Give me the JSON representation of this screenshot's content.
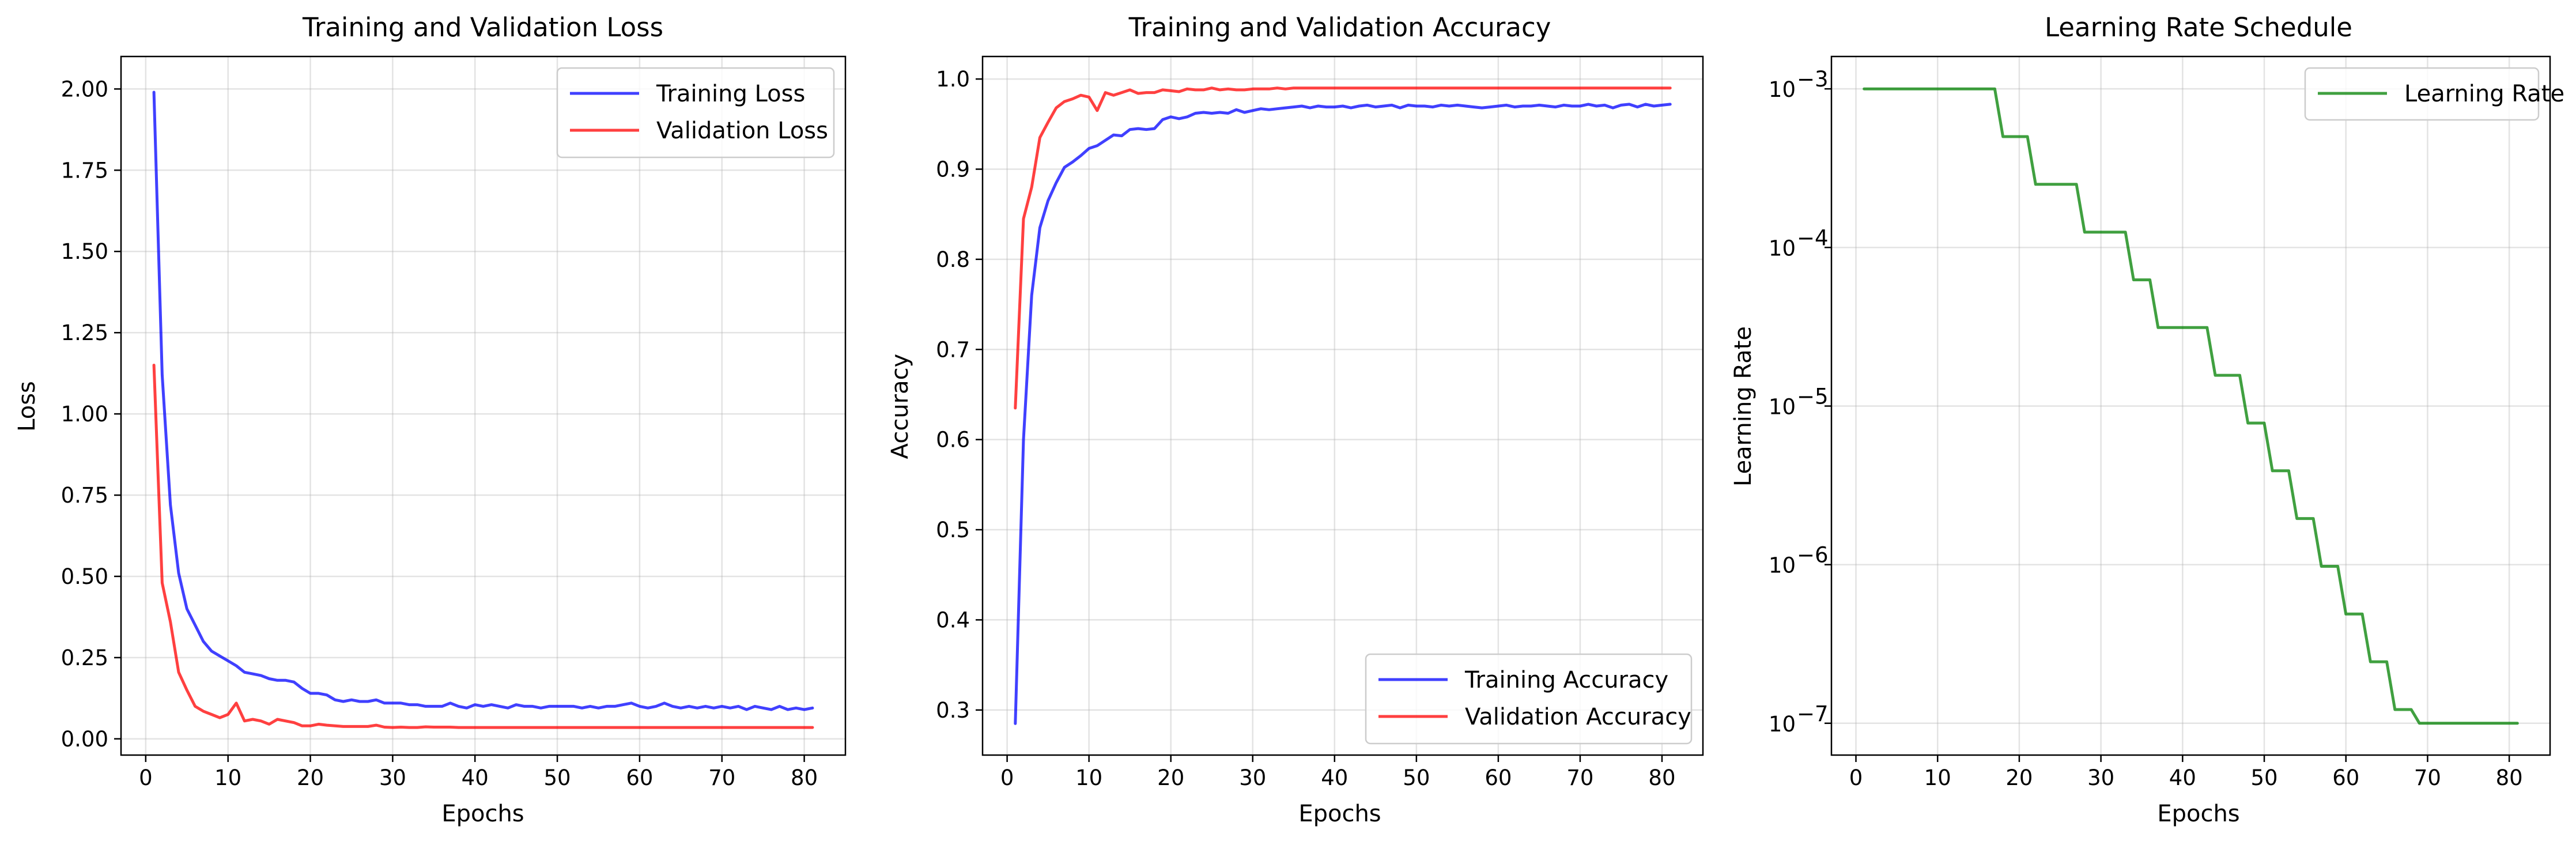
{
  "chart_data": [
    {
      "type": "line",
      "title": "Training and Validation Loss",
      "xlabel": "Epochs",
      "ylabel": "Loss",
      "xlim": [
        -3,
        85
      ],
      "ylim": [
        -0.05,
        2.1
      ],
      "xticks": [
        0,
        10,
        20,
        30,
        40,
        50,
        60,
        70,
        80
      ],
      "yticks": [
        0.0,
        0.25,
        0.5,
        0.75,
        1.0,
        1.25,
        1.5,
        1.75,
        2.0
      ],
      "ytick_labels": [
        "0.00",
        "0.25",
        "0.50",
        "0.75",
        "1.00",
        "1.25",
        "1.50",
        "1.75",
        "2.00"
      ],
      "grid": true,
      "legend_position": "upper right",
      "series": [
        {
          "name": "Training Loss",
          "color": "#0000ff",
          "x": [
            1,
            2,
            3,
            4,
            5,
            6,
            7,
            8,
            9,
            10,
            11,
            12,
            13,
            14,
            15,
            16,
            17,
            18,
            19,
            20,
            21,
            22,
            23,
            24,
            25,
            26,
            27,
            28,
            29,
            30,
            31,
            32,
            33,
            34,
            35,
            36,
            37,
            38,
            39,
            40,
            41,
            42,
            43,
            44,
            45,
            46,
            47,
            48,
            49,
            50,
            51,
            52,
            53,
            54,
            55,
            56,
            57,
            58,
            59,
            60,
            61,
            62,
            63,
            64,
            65,
            66,
            67,
            68,
            69,
            70,
            71,
            72,
            73,
            74,
            75,
            76,
            77,
            78,
            79,
            80,
            81
          ],
          "values": [
            1.99,
            1.12,
            0.72,
            0.51,
            0.4,
            0.35,
            0.3,
            0.27,
            0.255,
            0.24,
            0.225,
            0.205,
            0.2,
            0.195,
            0.185,
            0.18,
            0.18,
            0.175,
            0.155,
            0.14,
            0.14,
            0.135,
            0.12,
            0.115,
            0.12,
            0.115,
            0.115,
            0.12,
            0.11,
            0.11,
            0.11,
            0.105,
            0.105,
            0.1,
            0.1,
            0.1,
            0.11,
            0.1,
            0.095,
            0.105,
            0.1,
            0.105,
            0.1,
            0.095,
            0.105,
            0.1,
            0.1,
            0.095,
            0.1,
            0.1,
            0.1,
            0.1,
            0.095,
            0.1,
            0.095,
            0.1,
            0.1,
            0.105,
            0.11,
            0.1,
            0.095,
            0.1,
            0.11,
            0.1,
            0.095,
            0.1,
            0.095,
            0.1,
            0.095,
            0.1,
            0.095,
            0.1,
            0.09,
            0.1,
            0.095,
            0.09,
            0.1,
            0.09,
            0.095,
            0.09,
            0.095
          ]
        },
        {
          "name": "Validation Loss",
          "color": "#ff0000",
          "x": [
            1,
            2,
            3,
            4,
            5,
            6,
            7,
            8,
            9,
            10,
            11,
            12,
            13,
            14,
            15,
            16,
            17,
            18,
            19,
            20,
            21,
            22,
            23,
            24,
            25,
            26,
            27,
            28,
            29,
            30,
            31,
            32,
            33,
            34,
            35,
            36,
            37,
            38,
            39,
            40,
            41,
            42,
            43,
            44,
            45,
            46,
            47,
            48,
            49,
            50,
            51,
            52,
            53,
            54,
            55,
            56,
            57,
            58,
            59,
            60,
            61,
            62,
            63,
            64,
            65,
            66,
            67,
            68,
            69,
            70,
            71,
            72,
            73,
            74,
            75,
            76,
            77,
            78,
            79,
            80,
            81
          ],
          "values": [
            1.15,
            0.48,
            0.36,
            0.205,
            0.15,
            0.1,
            0.085,
            0.075,
            0.065,
            0.075,
            0.11,
            0.055,
            0.06,
            0.055,
            0.045,
            0.06,
            0.055,
            0.05,
            0.04,
            0.04,
            0.045,
            0.042,
            0.04,
            0.038,
            0.038,
            0.038,
            0.038,
            0.042,
            0.036,
            0.035,
            0.036,
            0.035,
            0.035,
            0.037,
            0.036,
            0.036,
            0.036,
            0.035,
            0.035,
            0.035,
            0.035,
            0.035,
            0.035,
            0.035,
            0.035,
            0.035,
            0.035,
            0.035,
            0.035,
            0.035,
            0.035,
            0.035,
            0.035,
            0.035,
            0.035,
            0.035,
            0.035,
            0.035,
            0.035,
            0.035,
            0.035,
            0.035,
            0.035,
            0.035,
            0.035,
            0.035,
            0.035,
            0.035,
            0.035,
            0.035,
            0.035,
            0.035,
            0.035,
            0.035,
            0.035,
            0.035,
            0.035,
            0.035,
            0.035,
            0.035,
            0.035
          ]
        }
      ]
    },
    {
      "type": "line",
      "title": "Training and Validation Accuracy",
      "xlabel": "Epochs",
      "ylabel": "Accuracy",
      "xlim": [
        -3,
        85
      ],
      "ylim": [
        0.25,
        1.025
      ],
      "xticks": [
        0,
        10,
        20,
        30,
        40,
        50,
        60,
        70,
        80
      ],
      "yticks": [
        0.3,
        0.4,
        0.5,
        0.6,
        0.7,
        0.8,
        0.9,
        1.0
      ],
      "ytick_labels": [
        "0.3",
        "0.4",
        "0.5",
        "0.6",
        "0.7",
        "0.8",
        "0.9",
        "1.0"
      ],
      "grid": true,
      "legend_position": "lower right",
      "series": [
        {
          "name": "Training Accuracy",
          "color": "#0000ff",
          "x": [
            1,
            2,
            3,
            4,
            5,
            6,
            7,
            8,
            9,
            10,
            11,
            12,
            13,
            14,
            15,
            16,
            17,
            18,
            19,
            20,
            21,
            22,
            23,
            24,
            25,
            26,
            27,
            28,
            29,
            30,
            31,
            32,
            33,
            34,
            35,
            36,
            37,
            38,
            39,
            40,
            41,
            42,
            43,
            44,
            45,
            46,
            47,
            48,
            49,
            50,
            51,
            52,
            53,
            54,
            55,
            56,
            57,
            58,
            59,
            60,
            61,
            62,
            63,
            64,
            65,
            66,
            67,
            68,
            69,
            70,
            71,
            72,
            73,
            74,
            75,
            76,
            77,
            78,
            79,
            80,
            81
          ],
          "values": [
            0.285,
            0.6,
            0.76,
            0.835,
            0.865,
            0.885,
            0.902,
            0.908,
            0.915,
            0.923,
            0.926,
            0.932,
            0.938,
            0.937,
            0.944,
            0.945,
            0.944,
            0.945,
            0.955,
            0.958,
            0.956,
            0.958,
            0.962,
            0.963,
            0.962,
            0.963,
            0.962,
            0.966,
            0.963,
            0.965,
            0.967,
            0.966,
            0.967,
            0.968,
            0.969,
            0.97,
            0.968,
            0.97,
            0.969,
            0.969,
            0.97,
            0.968,
            0.97,
            0.971,
            0.969,
            0.97,
            0.971,
            0.968,
            0.971,
            0.97,
            0.97,
            0.969,
            0.971,
            0.97,
            0.971,
            0.97,
            0.969,
            0.968,
            0.969,
            0.97,
            0.971,
            0.969,
            0.97,
            0.97,
            0.971,
            0.97,
            0.969,
            0.971,
            0.97,
            0.97,
            0.972,
            0.97,
            0.971,
            0.968,
            0.971,
            0.972,
            0.969,
            0.972,
            0.97,
            0.971,
            0.972
          ]
        },
        {
          "name": "Validation Accuracy",
          "color": "#ff0000",
          "x": [
            1,
            2,
            3,
            4,
            5,
            6,
            7,
            8,
            9,
            10,
            11,
            12,
            13,
            14,
            15,
            16,
            17,
            18,
            19,
            20,
            21,
            22,
            23,
            24,
            25,
            26,
            27,
            28,
            29,
            30,
            31,
            32,
            33,
            34,
            35,
            36,
            37,
            38,
            39,
            40,
            41,
            42,
            43,
            44,
            45,
            46,
            47,
            48,
            49,
            50,
            51,
            52,
            53,
            54,
            55,
            56,
            57,
            58,
            59,
            60,
            61,
            62,
            63,
            64,
            65,
            66,
            67,
            68,
            69,
            70,
            71,
            72,
            73,
            74,
            75,
            76,
            77,
            78,
            79,
            80,
            81
          ],
          "values": [
            0.635,
            0.845,
            0.88,
            0.935,
            0.952,
            0.968,
            0.975,
            0.978,
            0.982,
            0.98,
            0.965,
            0.985,
            0.982,
            0.985,
            0.988,
            0.984,
            0.985,
            0.985,
            0.988,
            0.987,
            0.986,
            0.989,
            0.988,
            0.988,
            0.99,
            0.988,
            0.989,
            0.988,
            0.988,
            0.989,
            0.989,
            0.989,
            0.99,
            0.989,
            0.99,
            0.99,
            0.99,
            0.99,
            0.99,
            0.99,
            0.99,
            0.99,
            0.99,
            0.99,
            0.99,
            0.99,
            0.99,
            0.99,
            0.99,
            0.99,
            0.99,
            0.99,
            0.99,
            0.99,
            0.99,
            0.99,
            0.99,
            0.99,
            0.99,
            0.99,
            0.99,
            0.99,
            0.99,
            0.99,
            0.99,
            0.99,
            0.99,
            0.99,
            0.99,
            0.99,
            0.99,
            0.99,
            0.99,
            0.99,
            0.99,
            0.99,
            0.99,
            0.99,
            0.99,
            0.99,
            0.99
          ]
        }
      ]
    },
    {
      "type": "line",
      "title": "Learning Rate Schedule",
      "xlabel": "Epochs",
      "ylabel": "Learning Rate",
      "xlim": [
        -3,
        85
      ],
      "ylim": [
        6.3e-08,
        0.0016
      ],
      "yscale": "log",
      "xticks": [
        0,
        10,
        20,
        30,
        40,
        50,
        60,
        70,
        80
      ],
      "yticks": [
        1e-07,
        1e-06,
        1e-05,
        0.0001,
        0.001
      ],
      "ytick_labels": [
        "10",
        "10",
        "10",
        "10",
        "10"
      ],
      "ytick_exponents": [
        "−7",
        "−6",
        "−5",
        "−4",
        "−3"
      ],
      "grid": true,
      "legend_position": "upper right",
      "series": [
        {
          "name": "Learning Rate",
          "color": "#008000",
          "x": [
            1,
            2,
            3,
            4,
            5,
            6,
            7,
            8,
            9,
            10,
            11,
            12,
            13,
            14,
            15,
            16,
            17,
            18,
            19,
            20,
            21,
            22,
            23,
            24,
            25,
            26,
            27,
            28,
            29,
            30,
            31,
            32,
            33,
            34,
            35,
            36,
            37,
            38,
            39,
            40,
            41,
            42,
            43,
            44,
            45,
            46,
            47,
            48,
            49,
            50,
            51,
            52,
            53,
            54,
            55,
            56,
            57,
            58,
            59,
            60,
            61,
            62,
            63,
            64,
            65,
            66,
            67,
            68,
            69,
            70,
            71,
            72,
            73,
            74,
            75,
            76,
            77,
            78,
            79,
            80,
            81
          ],
          "values": [
            0.001,
            0.001,
            0.001,
            0.001,
            0.001,
            0.001,
            0.001,
            0.001,
            0.001,
            0.001,
            0.001,
            0.001,
            0.001,
            0.001,
            0.001,
            0.001,
            0.001,
            0.0005,
            0.0005,
            0.0005,
            0.0005,
            0.00025,
            0.00025,
            0.00025,
            0.00025,
            0.00025,
            0.00025,
            0.000125,
            0.000125,
            0.000125,
            0.000125,
            0.000125,
            0.000125,
            6.25e-05,
            6.25e-05,
            6.25e-05,
            3.125e-05,
            3.125e-05,
            3.125e-05,
            3.125e-05,
            3.125e-05,
            3.125e-05,
            3.125e-05,
            1.5625e-05,
            1.5625e-05,
            1.5625e-05,
            1.5625e-05,
            7.8125e-06,
            7.8125e-06,
            7.8125e-06,
            3.90625e-06,
            3.90625e-06,
            3.90625e-06,
            1.953125e-06,
            1.953125e-06,
            1.953125e-06,
            9.765625e-07,
            9.765625e-07,
            9.765625e-07,
            4.8828125e-07,
            4.8828125e-07,
            4.8828125e-07,
            2.44140625e-07,
            2.44140625e-07,
            2.44140625e-07,
            1.220703125e-07,
            1.220703125e-07,
            1.220703125e-07,
            1e-07,
            1e-07,
            1e-07,
            1e-07,
            1e-07,
            1e-07,
            1e-07,
            1e-07,
            1e-07,
            1e-07,
            1e-07,
            1e-07,
            1e-07
          ]
        }
      ]
    }
  ]
}
